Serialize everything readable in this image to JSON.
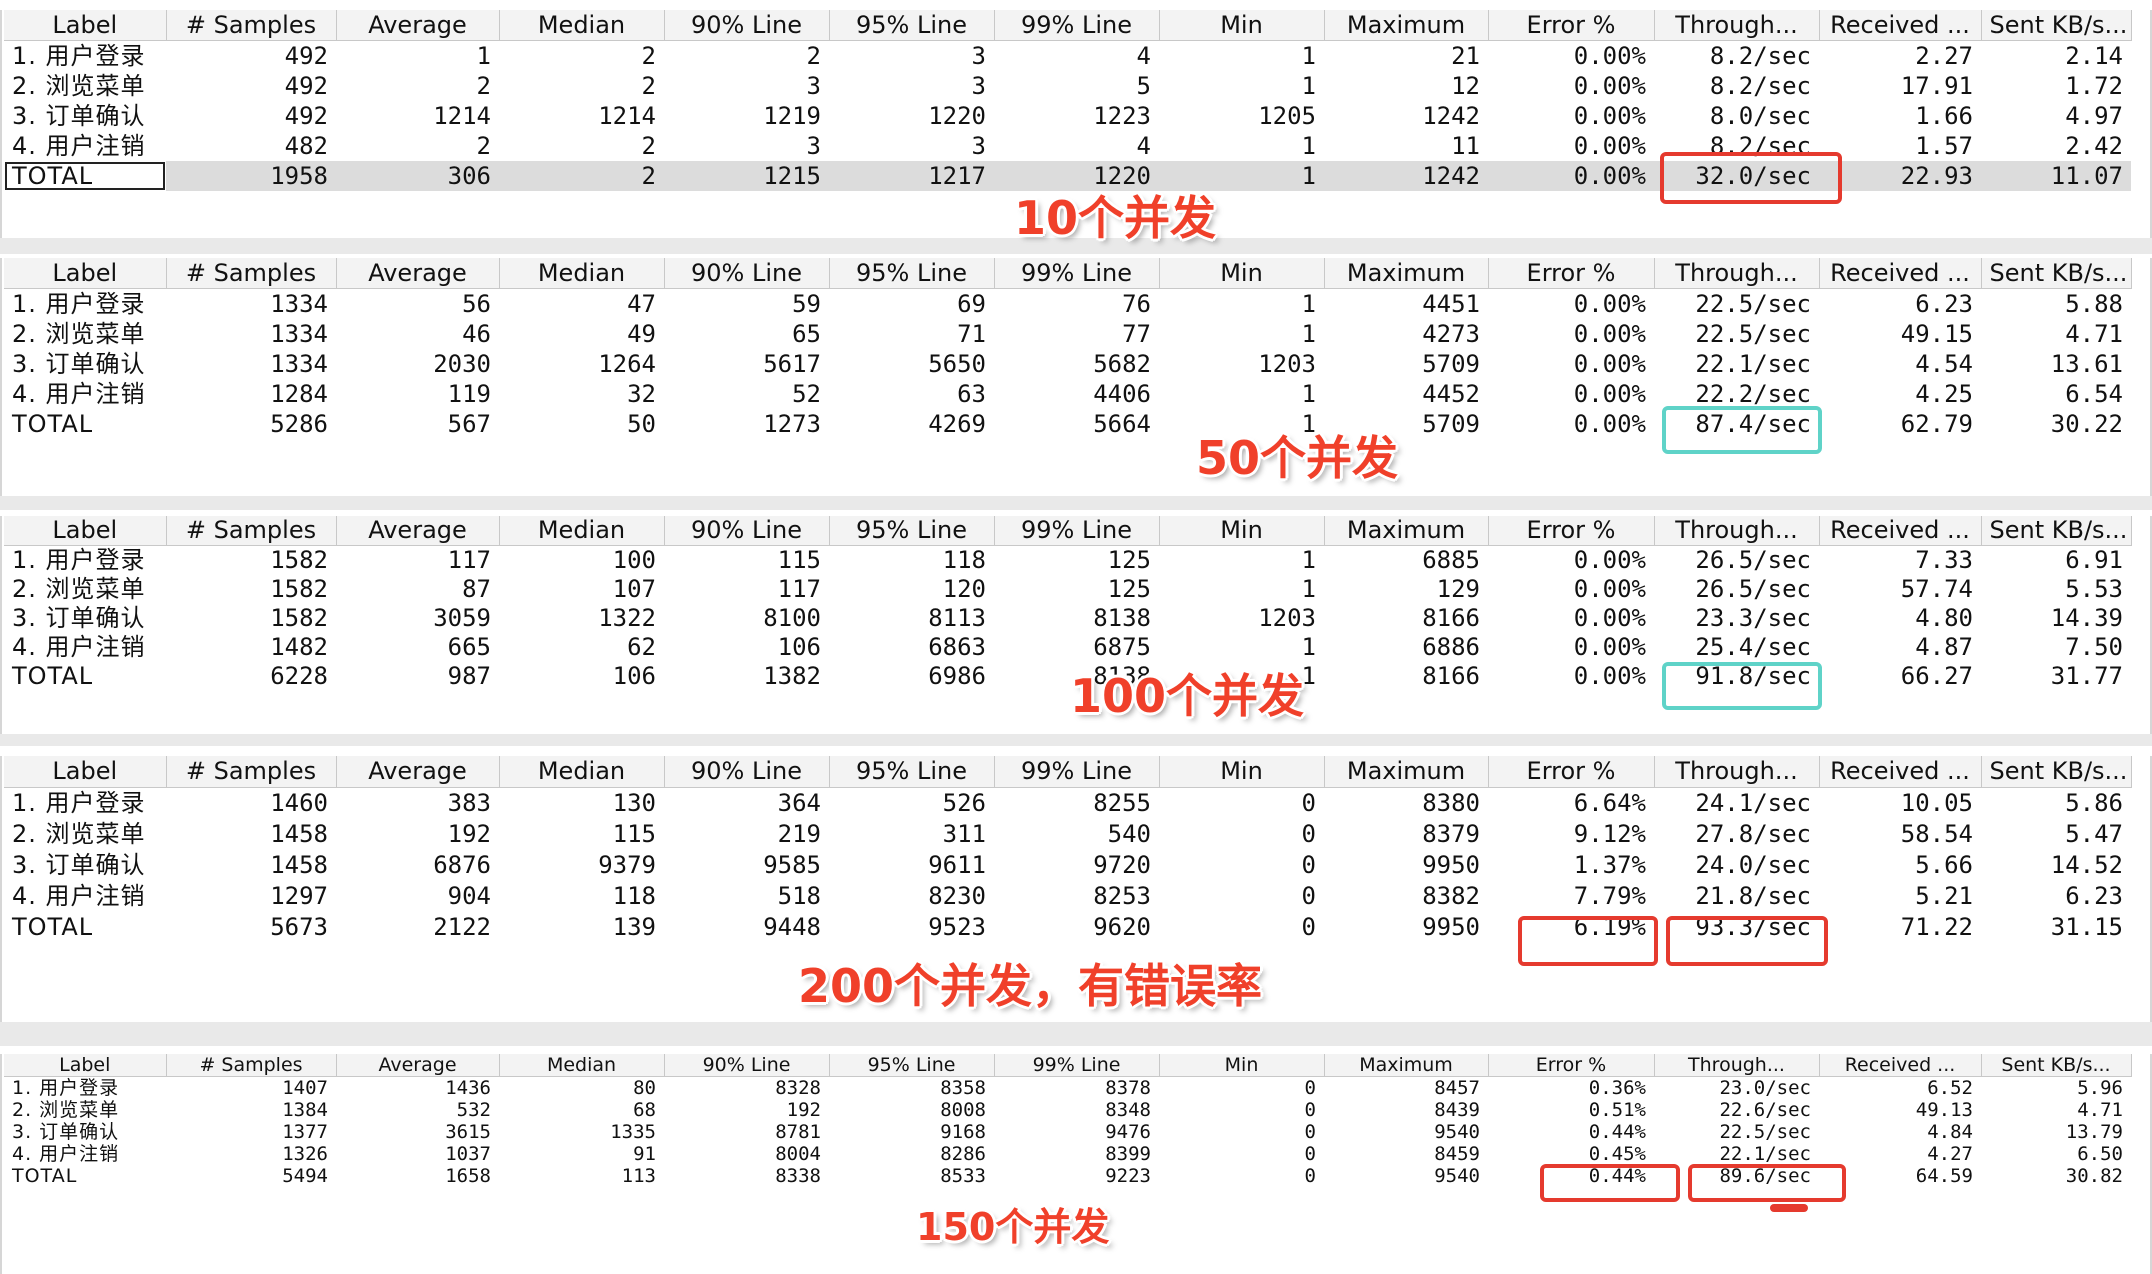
{
  "columns": [
    "Label",
    "# Samples",
    "Average",
    "Median",
    "90% Line",
    "95% Line",
    "99% Line",
    "Min",
    "Maximum",
    "Error %",
    "Through...",
    "Received ...",
    "Sent KB/s..."
  ],
  "tables": [
    {
      "annotation": "10个并发",
      "rows": [
        [
          "1. 用户登录",
          "492",
          "1",
          "2",
          "2",
          "3",
          "4",
          "1",
          "21",
          "0.00%",
          "8.2/sec",
          "2.27",
          "2.14"
        ],
        [
          "2. 浏览菜单",
          "492",
          "2",
          "2",
          "3",
          "3",
          "5",
          "1",
          "12",
          "0.00%",
          "8.2/sec",
          "17.91",
          "1.72"
        ],
        [
          "3. 订单确认",
          "492",
          "1214",
          "1214",
          "1219",
          "1220",
          "1223",
          "1205",
          "1242",
          "0.00%",
          "8.0/sec",
          "1.66",
          "4.97"
        ],
        [
          "4. 用户注销",
          "482",
          "2",
          "2",
          "3",
          "3",
          "4",
          "1",
          "11",
          "0.00%",
          "8.2/sec",
          "1.57",
          "2.42"
        ],
        [
          "TOTAL",
          "1958",
          "306",
          "2",
          "1215",
          "1217",
          "1220",
          "1",
          "1242",
          "0.00%",
          "32.0/sec",
          "22.93",
          "11.07"
        ]
      ]
    },
    {
      "annotation": "50个并发",
      "rows": [
        [
          "1. 用户登录",
          "1334",
          "56",
          "47",
          "59",
          "69",
          "76",
          "1",
          "4451",
          "0.00%",
          "22.5/sec",
          "6.23",
          "5.88"
        ],
        [
          "2. 浏览菜单",
          "1334",
          "46",
          "49",
          "65",
          "71",
          "77",
          "1",
          "4273",
          "0.00%",
          "22.5/sec",
          "49.15",
          "4.71"
        ],
        [
          "3. 订单确认",
          "1334",
          "2030",
          "1264",
          "5617",
          "5650",
          "5682",
          "1203",
          "5709",
          "0.00%",
          "22.1/sec",
          "4.54",
          "13.61"
        ],
        [
          "4. 用户注销",
          "1284",
          "119",
          "32",
          "52",
          "63",
          "4406",
          "1",
          "4452",
          "0.00%",
          "22.2/sec",
          "4.25",
          "6.54"
        ],
        [
          "TOTAL",
          "5286",
          "567",
          "50",
          "1273",
          "4269",
          "5664",
          "1",
          "5709",
          "0.00%",
          "87.4/sec",
          "62.79",
          "30.22"
        ]
      ]
    },
    {
      "annotation": "100个并发",
      "rows": [
        [
          "1. 用户登录",
          "1582",
          "117",
          "100",
          "115",
          "118",
          "125",
          "1",
          "6885",
          "0.00%",
          "26.5/sec",
          "7.33",
          "6.91"
        ],
        [
          "2. 浏览菜单",
          "1582",
          "87",
          "107",
          "117",
          "120",
          "125",
          "1",
          "129",
          "0.00%",
          "26.5/sec",
          "57.74",
          "5.53"
        ],
        [
          "3. 订单确认",
          "1582",
          "3059",
          "1322",
          "8100",
          "8113",
          "8138",
          "1203",
          "8166",
          "0.00%",
          "23.3/sec",
          "4.80",
          "14.39"
        ],
        [
          "4. 用户注销",
          "1482",
          "665",
          "62",
          "106",
          "6863",
          "6875",
          "1",
          "6886",
          "0.00%",
          "25.4/sec",
          "4.87",
          "7.50"
        ],
        [
          "TOTAL",
          "6228",
          "987",
          "106",
          "1382",
          "6986",
          "8138",
          "1",
          "8166",
          "0.00%",
          "91.8/sec",
          "66.27",
          "31.77"
        ]
      ]
    },
    {
      "annotation": "200个并发，有错误率",
      "rows": [
        [
          "1. 用户登录",
          "1460",
          "383",
          "130",
          "364",
          "526",
          "8255",
          "0",
          "8380",
          "6.64%",
          "24.1/sec",
          "10.05",
          "5.86"
        ],
        [
          "2. 浏览菜单",
          "1458",
          "192",
          "115",
          "219",
          "311",
          "540",
          "0",
          "8379",
          "9.12%",
          "27.8/sec",
          "58.54",
          "5.47"
        ],
        [
          "3. 订单确认",
          "1458",
          "6876",
          "9379",
          "9585",
          "9611",
          "9720",
          "0",
          "9950",
          "1.37%",
          "24.0/sec",
          "5.66",
          "14.52"
        ],
        [
          "4. 用户注销",
          "1297",
          "904",
          "118",
          "518",
          "8230",
          "8253",
          "0",
          "8382",
          "7.79%",
          "21.8/sec",
          "5.21",
          "6.23"
        ],
        [
          "TOTAL",
          "5673",
          "2122",
          "139",
          "9448",
          "9523",
          "9620",
          "0",
          "9950",
          "6.19%",
          "93.3/sec",
          "71.22",
          "31.15"
        ]
      ]
    },
    {
      "annotation": "150个并发",
      "rows": [
        [
          "1. 用户登录",
          "1407",
          "1436",
          "80",
          "8328",
          "8358",
          "8378",
          "0",
          "8457",
          "0.36%",
          "23.0/sec",
          "6.52",
          "5.96"
        ],
        [
          "2. 浏览菜单",
          "1384",
          "532",
          "68",
          "192",
          "8008",
          "8348",
          "0",
          "8439",
          "0.51%",
          "22.6/sec",
          "49.13",
          "4.71"
        ],
        [
          "3. 订单确认",
          "1377",
          "3615",
          "1335",
          "8781",
          "9168",
          "9476",
          "0",
          "9540",
          "0.44%",
          "22.5/sec",
          "4.84",
          "13.79"
        ],
        [
          "4. 用户注销",
          "1326",
          "1037",
          "91",
          "8004",
          "8286",
          "8399",
          "0",
          "8459",
          "0.45%",
          "22.1/sec",
          "4.27",
          "6.50"
        ],
        [
          "TOTAL",
          "5494",
          "1658",
          "113",
          "8338",
          "8533",
          "9223",
          "0",
          "9540",
          "0.44%",
          "89.6/sec",
          "64.59",
          "30.82"
        ]
      ]
    }
  ],
  "colors": {
    "highlight_red": "#e53a2e",
    "highlight_teal": "#5fd3c8",
    "annotation_text": "#f0402a",
    "total_row_bg": "#dcdcdc",
    "header_bg": "#f3f3f3"
  }
}
